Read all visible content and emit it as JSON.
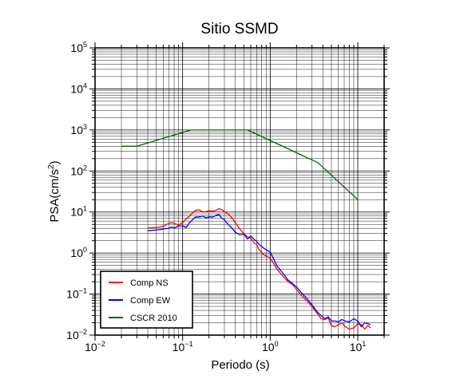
{
  "chart_data": {
    "type": "line",
    "title": "Sitio SSMD",
    "xlabel": "Periodo (s)",
    "ylabel_base": "PSA(cm/s",
    "ylabel_sup": "2",
    "ylabel_close": ")",
    "xscale": "log",
    "yscale": "log",
    "xlim": [
      0.01,
      20
    ],
    "ylim": [
      0.01,
      100000
    ],
    "grid": true,
    "legend_position": "bottom-left",
    "x_ticks": [
      {
        "value": 0.01,
        "base": "10",
        "exp": "−2"
      },
      {
        "value": 0.1,
        "base": "10",
        "exp": "−1"
      },
      {
        "value": 1,
        "base": "10",
        "exp": "0"
      },
      {
        "value": 10,
        "base": "10",
        "exp": "1"
      }
    ],
    "y_ticks": [
      {
        "value": 0.01,
        "base": "10",
        "exp": "−2"
      },
      {
        "value": 0.1,
        "base": "10",
        "exp": "−1"
      },
      {
        "value": 1,
        "base": "10",
        "exp": "0"
      },
      {
        "value": 10,
        "base": "10",
        "exp": "1"
      },
      {
        "value": 100,
        "base": "10",
        "exp": "2"
      },
      {
        "value": 1000,
        "base": "10",
        "exp": "3"
      },
      {
        "value": 10000,
        "base": "10",
        "exp": "4"
      },
      {
        "value": 100000,
        "base": "10",
        "exp": "5"
      }
    ],
    "series": [
      {
        "name": "Comp NS",
        "color": "#ff0000",
        "points": [
          [
            0.04,
            4.1
          ],
          [
            0.047,
            4.2
          ],
          [
            0.055,
            4.3
          ],
          [
            0.062,
            4.6
          ],
          [
            0.068,
            5.2
          ],
          [
            0.075,
            5.5
          ],
          [
            0.082,
            5.2
          ],
          [
            0.09,
            4.8
          ],
          [
            0.1,
            5.5
          ],
          [
            0.11,
            6.8
          ],
          [
            0.12,
            8
          ],
          [
            0.13,
            9.5
          ],
          [
            0.14,
            11
          ],
          [
            0.155,
            11.3
          ],
          [
            0.17,
            10
          ],
          [
            0.185,
            10.2
          ],
          [
            0.2,
            10.8
          ],
          [
            0.22,
            10.5
          ],
          [
            0.24,
            11
          ],
          [
            0.26,
            12
          ],
          [
            0.28,
            11.5
          ],
          [
            0.3,
            10.2
          ],
          [
            0.33,
            9
          ],
          [
            0.36,
            7.5
          ],
          [
            0.4,
            5.5
          ],
          [
            0.45,
            3.8
          ],
          [
            0.5,
            3
          ],
          [
            0.55,
            2.5
          ],
          [
            0.6,
            2.3
          ],
          [
            0.65,
            1.8
          ],
          [
            0.7,
            1.6
          ],
          [
            0.75,
            1.2
          ],
          [
            0.85,
            0.9
          ],
          [
            1,
            0.75
          ],
          [
            1.1,
            0.55
          ],
          [
            1.2,
            0.4
          ],
          [
            1.4,
            0.27
          ],
          [
            1.6,
            0.2
          ],
          [
            1.8,
            0.17
          ],
          [
            2,
            0.13
          ],
          [
            2.3,
            0.09
          ],
          [
            2.6,
            0.07
          ],
          [
            3,
            0.05
          ],
          [
            3.4,
            0.035
          ],
          [
            3.8,
            0.025
          ],
          [
            4.2,
            0.024
          ],
          [
            4.6,
            0.026
          ],
          [
            5,
            0.017
          ],
          [
            5.5,
            0.016
          ],
          [
            6,
            0.018
          ],
          [
            6.6,
            0.02
          ],
          [
            7.2,
            0.016
          ],
          [
            8,
            0.014
          ],
          [
            9,
            0.015
          ],
          [
            10,
            0.019
          ],
          [
            11,
            0.018
          ],
          [
            12,
            0.014
          ],
          [
            13,
            0.017
          ],
          [
            14,
            0.015
          ]
        ]
      },
      {
        "name": "Comp EW",
        "color": "#0000ff",
        "points": [
          [
            0.04,
            3.5
          ],
          [
            0.047,
            3.6
          ],
          [
            0.055,
            3.7
          ],
          [
            0.062,
            3.9
          ],
          [
            0.068,
            4
          ],
          [
            0.075,
            4.3
          ],
          [
            0.082,
            4.1
          ],
          [
            0.09,
            4.6
          ],
          [
            0.1,
            4.6
          ],
          [
            0.11,
            4.2
          ],
          [
            0.12,
            5.5
          ],
          [
            0.13,
            6.5
          ],
          [
            0.14,
            7.5
          ],
          [
            0.155,
            7.6
          ],
          [
            0.17,
            8
          ],
          [
            0.185,
            7.2
          ],
          [
            0.2,
            7.6
          ],
          [
            0.22,
            7.5
          ],
          [
            0.24,
            8.2
          ],
          [
            0.26,
            8.7
          ],
          [
            0.28,
            7
          ],
          [
            0.3,
            6.5
          ],
          [
            0.33,
            5
          ],
          [
            0.36,
            4.2
          ],
          [
            0.4,
            3.2
          ],
          [
            0.45,
            2.8
          ],
          [
            0.5,
            2.9
          ],
          [
            0.55,
            2.2
          ],
          [
            0.6,
            2.6
          ],
          [
            0.65,
            2.2
          ],
          [
            0.7,
            1.9
          ],
          [
            0.75,
            1.6
          ],
          [
            0.85,
            1.3
          ],
          [
            1,
            1.05
          ],
          [
            1.1,
            0.7
          ],
          [
            1.2,
            0.48
          ],
          [
            1.4,
            0.32
          ],
          [
            1.6,
            0.22
          ],
          [
            1.8,
            0.18
          ],
          [
            2,
            0.15
          ],
          [
            2.3,
            0.105
          ],
          [
            2.6,
            0.08
          ],
          [
            3,
            0.055
          ],
          [
            3.4,
            0.038
          ],
          [
            3.8,
            0.03
          ],
          [
            4.2,
            0.025
          ],
          [
            4.6,
            0.028
          ],
          [
            5,
            0.022
          ],
          [
            5.5,
            0.022
          ],
          [
            6,
            0.021
          ],
          [
            6.6,
            0.024
          ],
          [
            7.2,
            0.022
          ],
          [
            8,
            0.021
          ],
          [
            9,
            0.025
          ],
          [
            10,
            0.022
          ],
          [
            11,
            0.016
          ],
          [
            12,
            0.02
          ],
          [
            13,
            0.019
          ],
          [
            14,
            0.018
          ]
        ]
      },
      {
        "name": "CSCR 2010",
        "color": "#006400",
        "points": [
          [
            0.02,
            400
          ],
          [
            0.03,
            400
          ],
          [
            0.125,
            1000
          ],
          [
            0.55,
            1000
          ],
          [
            3.5,
            160
          ],
          [
            10,
            20
          ]
        ]
      }
    ]
  }
}
